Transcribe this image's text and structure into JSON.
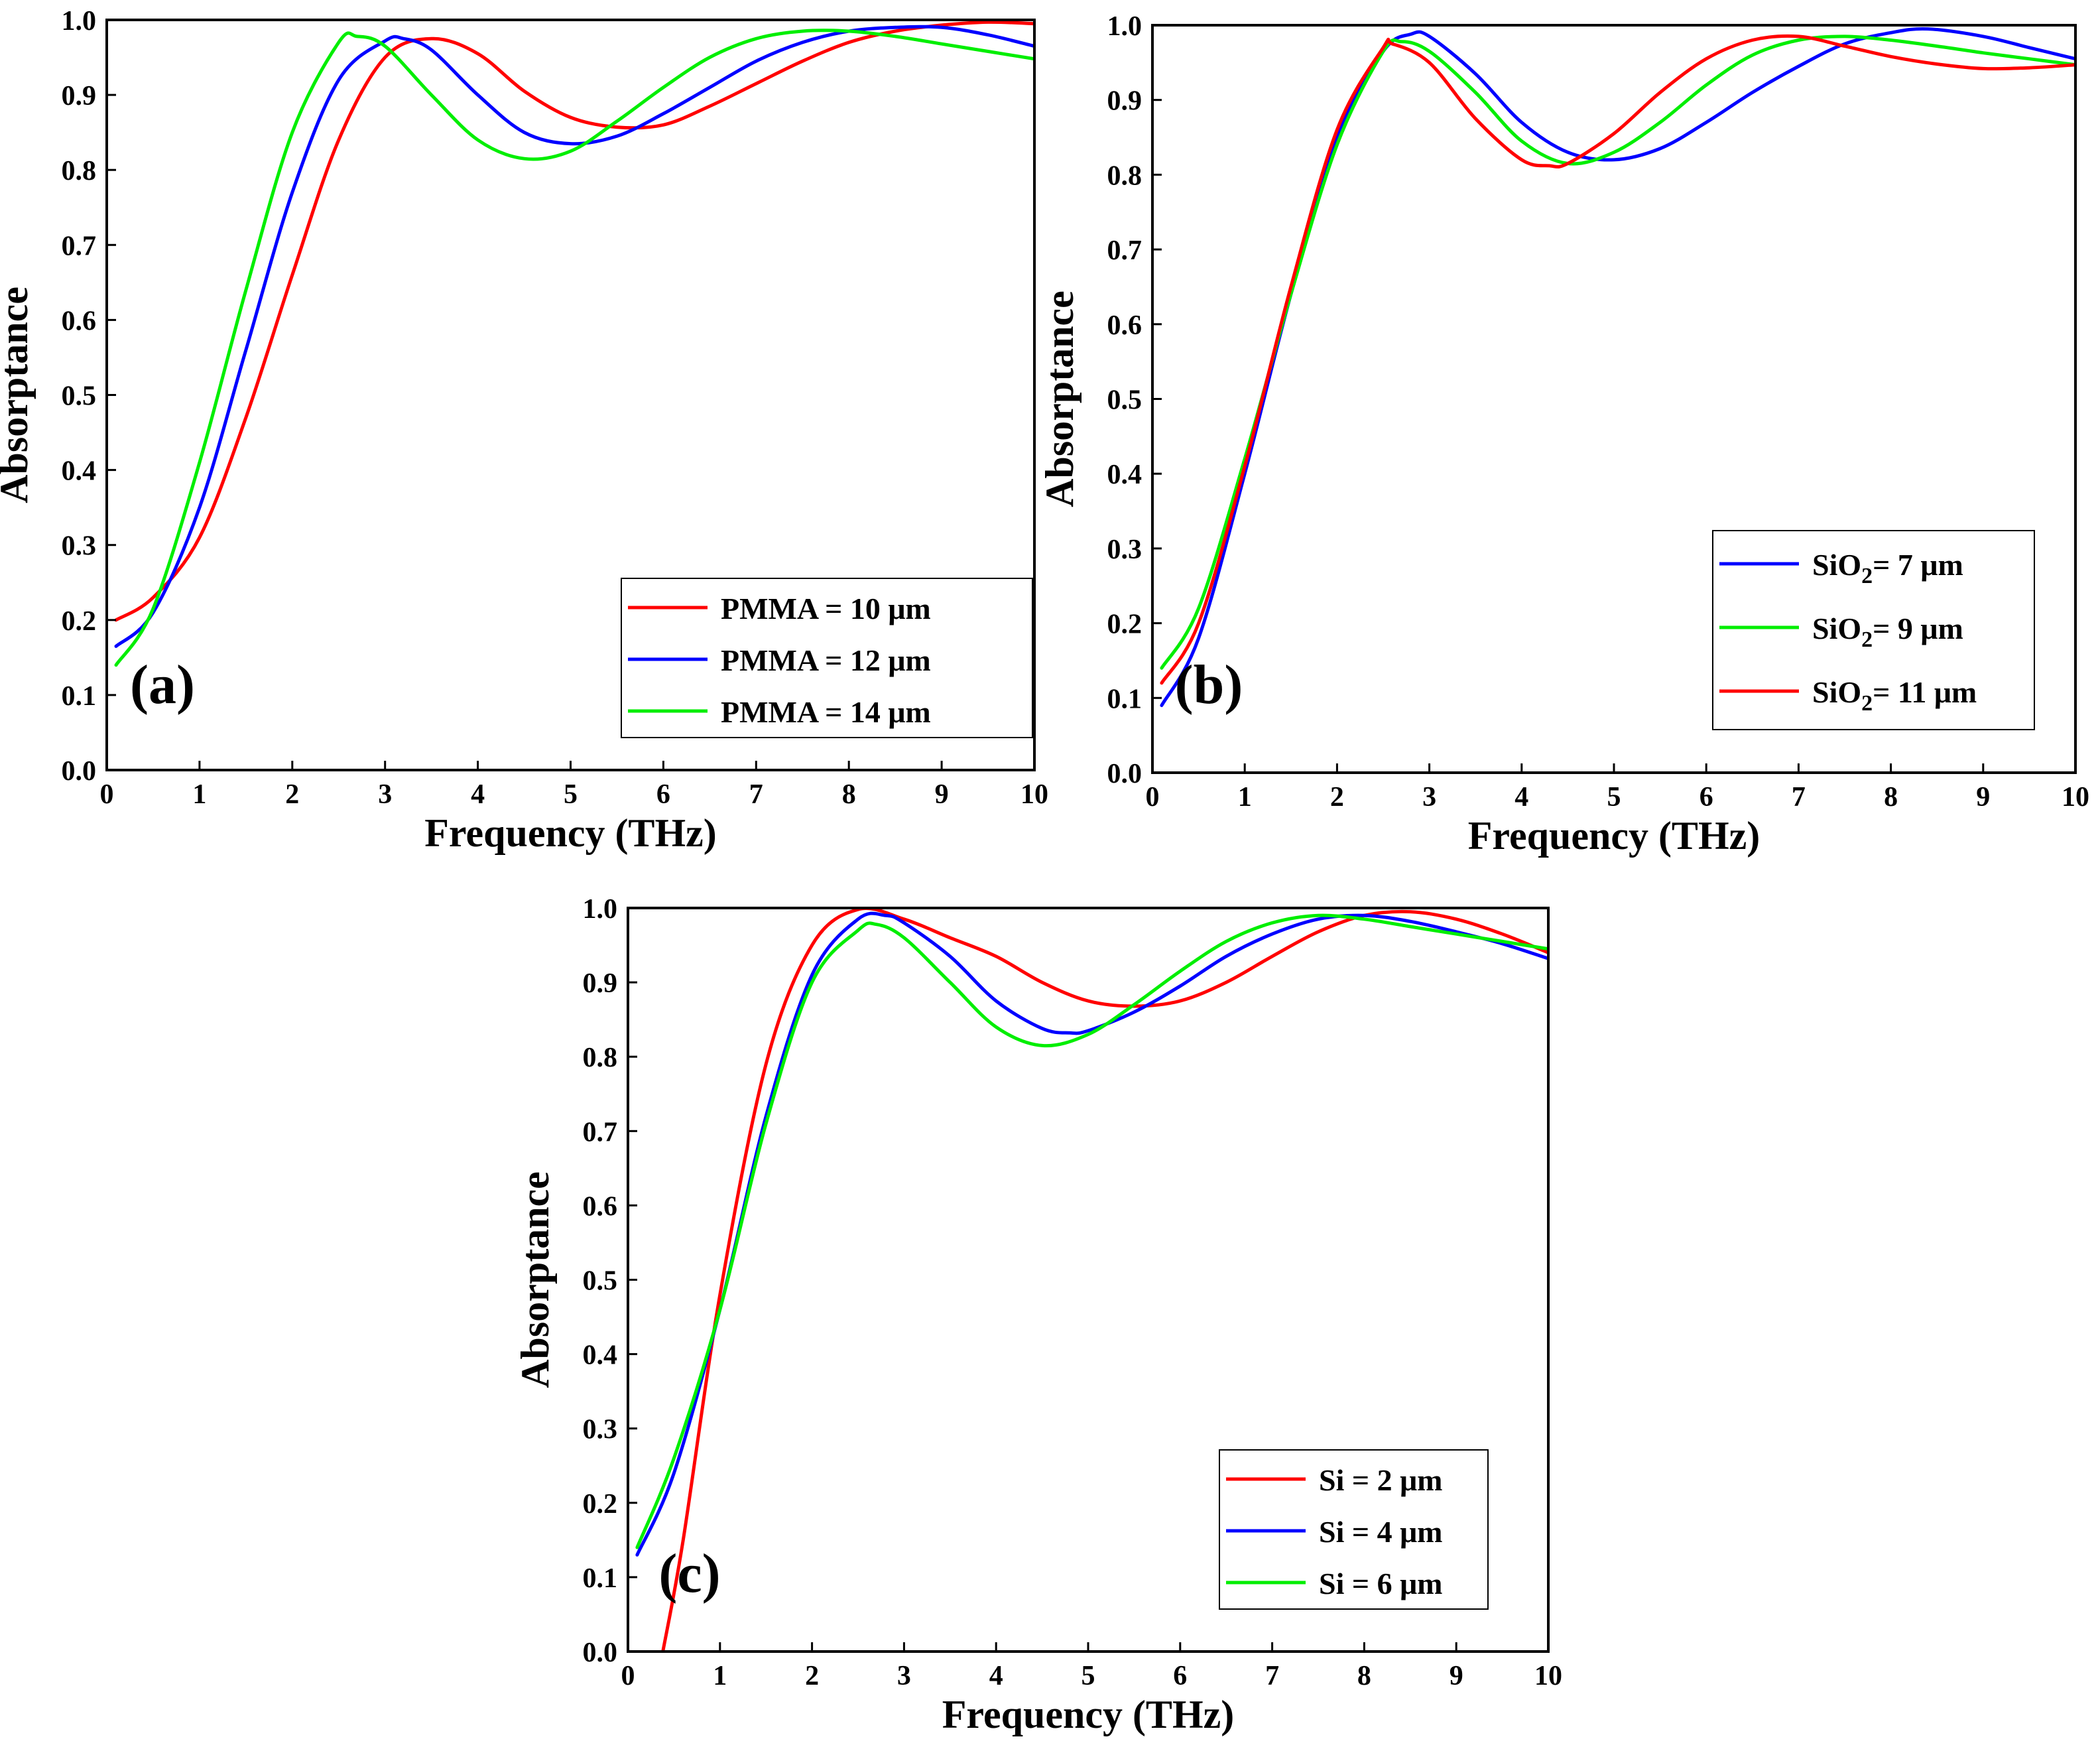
{
  "chart_data": [
    {
      "type": "line",
      "panel_label": "(a)",
      "xlabel": "Frequency (THz)",
      "ylabel": "Absorptance",
      "xlim": [
        0,
        10
      ],
      "ylim": [
        0,
        1
      ],
      "xticks": [
        "0",
        "1",
        "2",
        "3",
        "4",
        "5",
        "6",
        "7",
        "8",
        "9",
        "10"
      ],
      "yticks": [
        "0.0",
        "0.1",
        "0.2",
        "0.3",
        "0.4",
        "0.5",
        "0.6",
        "0.7",
        "0.8",
        "0.9",
        "1.0"
      ],
      "legend_position": "bottom-right",
      "series": [
        {
          "name": "PMMA = 10 μm",
          "name_parts": [
            "PMMA = 10 μm"
          ],
          "color": "#ff0000",
          "x": [
            0.1,
            0.5,
            1.0,
            1.5,
            2.0,
            2.5,
            3.0,
            3.5,
            4.0,
            4.5,
            5.0,
            5.5,
            6.0,
            6.5,
            7.0,
            7.5,
            8.0,
            8.5,
            9.0,
            9.5,
            10.0
          ],
          "y": [
            0.2,
            0.23,
            0.31,
            0.47,
            0.66,
            0.84,
            0.95,
            0.975,
            0.955,
            0.905,
            0.87,
            0.857,
            0.86,
            0.885,
            0.915,
            0.945,
            0.97,
            0.985,
            0.993,
            0.997,
            0.995
          ]
        },
        {
          "name": "PMMA = 12 μm",
          "name_parts": [
            "PMMA = 12 μm"
          ],
          "color": "#0000ff",
          "x": [
            0.1,
            0.5,
            1.0,
            1.5,
            2.0,
            2.5,
            3.0,
            3.2,
            3.5,
            4.0,
            4.5,
            5.0,
            5.5,
            6.0,
            6.5,
            7.0,
            7.5,
            8.0,
            8.5,
            9.0,
            9.5,
            10.0
          ],
          "y": [
            0.165,
            0.21,
            0.35,
            0.56,
            0.77,
            0.92,
            0.972,
            0.975,
            0.96,
            0.9,
            0.85,
            0.835,
            0.845,
            0.875,
            0.91,
            0.945,
            0.97,
            0.985,
            0.99,
            0.99,
            0.98,
            0.965
          ]
        },
        {
          "name": "PMMA = 14 μm",
          "name_parts": [
            "PMMA = 14 μm"
          ],
          "color": "#00ee00",
          "x": [
            0.1,
            0.5,
            1.0,
            1.5,
            2.0,
            2.5,
            2.7,
            3.0,
            3.5,
            4.0,
            4.5,
            5.0,
            5.5,
            6.0,
            6.5,
            7.0,
            7.5,
            8.0,
            8.5,
            9.0,
            9.5,
            10.0
          ],
          "y": [
            0.14,
            0.215,
            0.41,
            0.64,
            0.85,
            0.97,
            0.978,
            0.965,
            0.9,
            0.84,
            0.815,
            0.825,
            0.865,
            0.91,
            0.95,
            0.975,
            0.985,
            0.985,
            0.978,
            0.968,
            0.958,
            0.948
          ]
        }
      ]
    },
    {
      "type": "line",
      "panel_label": "(b)",
      "xlabel": "Frequency (THz)",
      "ylabel": "Absorptance",
      "xlim": [
        0,
        10
      ],
      "ylim": [
        0,
        1
      ],
      "xticks": [
        "0",
        "1",
        "2",
        "3",
        "4",
        "5",
        "6",
        "7",
        "8",
        "9",
        "10"
      ],
      "yticks": [
        "0.0",
        "0.1",
        "0.2",
        "0.3",
        "0.4",
        "0.5",
        "0.6",
        "0.7",
        "0.8",
        "0.9",
        "1.0"
      ],
      "legend_position": "right",
      "series": [
        {
          "name": "SiO2= 7 μm",
          "name_parts": [
            "SiO",
            "2",
            "= 7 μm"
          ],
          "color": "#0000ff",
          "x": [
            0.1,
            0.5,
            1.0,
            1.5,
            2.0,
            2.5,
            2.8,
            3.0,
            3.5,
            4.0,
            4.5,
            5.0,
            5.5,
            6.0,
            6.5,
            7.0,
            7.5,
            8.0,
            8.4,
            9.0,
            9.5,
            10.0
          ],
          "y": [
            0.09,
            0.18,
            0.4,
            0.64,
            0.85,
            0.965,
            0.988,
            0.985,
            0.935,
            0.87,
            0.83,
            0.82,
            0.835,
            0.87,
            0.91,
            0.945,
            0.975,
            0.99,
            0.995,
            0.985,
            0.97,
            0.955
          ]
        },
        {
          "name": "SiO2= 9 μm",
          "name_parts": [
            "SiO",
            "2",
            "= 9 μm"
          ],
          "color": "#00ee00",
          "x": [
            0.1,
            0.5,
            1.0,
            1.5,
            2.0,
            2.5,
            2.7,
            3.0,
            3.5,
            4.0,
            4.5,
            5.0,
            5.5,
            6.0,
            6.5,
            7.0,
            7.5,
            8.0,
            8.5,
            9.0,
            9.5,
            10.0
          ],
          "y": [
            0.14,
            0.22,
            0.42,
            0.64,
            0.84,
            0.965,
            0.978,
            0.965,
            0.91,
            0.845,
            0.815,
            0.83,
            0.87,
            0.92,
            0.96,
            0.98,
            0.985,
            0.98,
            0.972,
            0.963,
            0.955,
            0.947
          ]
        },
        {
          "name": "SiO2= 11 μm",
          "name_parts": [
            "SiO",
            "2",
            "= 11 μm"
          ],
          "color": "#ff0000",
          "x": [
            0.1,
            0.5,
            1.0,
            1.5,
            2.0,
            2.5,
            2.6,
            3.0,
            3.5,
            4.0,
            4.3,
            4.5,
            5.0,
            5.5,
            6.0,
            6.5,
            7.0,
            7.5,
            8.0,
            8.5,
            9.0,
            9.5,
            10.0
          ],
          "y": [
            0.12,
            0.2,
            0.41,
            0.65,
            0.86,
            0.97,
            0.975,
            0.95,
            0.875,
            0.82,
            0.812,
            0.815,
            0.855,
            0.91,
            0.955,
            0.98,
            0.985,
            0.972,
            0.958,
            0.948,
            0.942,
            0.943,
            0.947
          ]
        }
      ]
    },
    {
      "type": "line",
      "panel_label": "(c)",
      "xlabel": "Frequency (THz)",
      "ylabel": "Absorptance",
      "xlim": [
        0,
        10
      ],
      "ylim": [
        0,
        1
      ],
      "xticks": [
        "0",
        "1",
        "2",
        "3",
        "4",
        "5",
        "6",
        "7",
        "8",
        "9",
        "10"
      ],
      "yticks": [
        "0.0",
        "0.1",
        "0.2",
        "0.3",
        "0.4",
        "0.5",
        "0.6",
        "0.7",
        "0.8",
        "0.9",
        "1.0"
      ],
      "legend_position": "bottom-right",
      "series": [
        {
          "name": "Si = 2 μm",
          "name_parts": [
            "Si = 2 μm"
          ],
          "color": "#ff0000",
          "x": [
            0.38,
            0.6,
            1.0,
            1.5,
            2.0,
            2.5,
            3.0,
            3.5,
            4.0,
            4.5,
            5.0,
            5.5,
            6.0,
            6.5,
            7.0,
            7.5,
            8.0,
            8.5,
            9.0,
            9.5,
            10.0
          ],
          "y": [
            0.0,
            0.15,
            0.48,
            0.79,
            0.95,
            0.998,
            0.985,
            0.96,
            0.935,
            0.9,
            0.875,
            0.868,
            0.875,
            0.9,
            0.935,
            0.968,
            0.99,
            0.995,
            0.985,
            0.965,
            0.94
          ]
        },
        {
          "name": "Si = 4 μm",
          "name_parts": [
            "Si = 4 μm"
          ],
          "color": "#0000ff",
          "x": [
            0.1,
            0.5,
            1.0,
            1.5,
            2.0,
            2.5,
            2.8,
            3.0,
            3.5,
            4.0,
            4.5,
            4.8,
            5.0,
            5.5,
            6.0,
            6.5,
            7.0,
            7.5,
            8.0,
            8.5,
            9.0,
            9.5,
            10.0
          ],
          "y": [
            0.13,
            0.24,
            0.46,
            0.72,
            0.91,
            0.985,
            0.99,
            0.98,
            0.935,
            0.875,
            0.838,
            0.832,
            0.835,
            0.86,
            0.895,
            0.935,
            0.965,
            0.985,
            0.99,
            0.982,
            0.968,
            0.952,
            0.932
          ]
        },
        {
          "name": "Si = 6 μm",
          "name_parts": [
            "Si = 6 μm"
          ],
          "color": "#00ee00",
          "x": [
            0.1,
            0.5,
            1.0,
            1.5,
            2.0,
            2.5,
            2.7,
            3.0,
            3.5,
            4.0,
            4.5,
            5.0,
            5.5,
            6.0,
            6.5,
            7.0,
            7.5,
            8.0,
            8.5,
            9.0,
            9.5,
            10.0
          ],
          "y": [
            0.14,
            0.26,
            0.46,
            0.71,
            0.9,
            0.97,
            0.978,
            0.96,
            0.9,
            0.84,
            0.815,
            0.83,
            0.87,
            0.915,
            0.955,
            0.98,
            0.99,
            0.985,
            0.975,
            0.965,
            0.955,
            0.945
          ]
        }
      ]
    }
  ]
}
